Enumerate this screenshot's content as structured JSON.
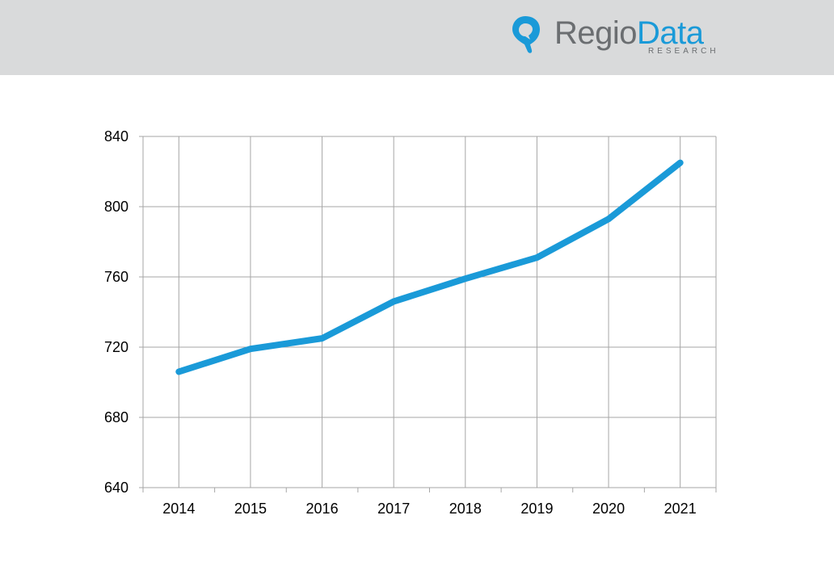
{
  "brand": {
    "name_part1": "Regio",
    "name_part2": "Data",
    "subtitle": "RESEARCH",
    "accent_color": "#1a9ad8",
    "text_color": "#6b6e71",
    "icon": "location-pin-icon"
  },
  "header": {
    "background": "#d9dadb"
  },
  "chart_data": {
    "type": "line",
    "title": "",
    "xlabel": "",
    "ylabel": "",
    "categories": [
      "2014",
      "2015",
      "2016",
      "2017",
      "2018",
      "2019",
      "2020",
      "2021"
    ],
    "series": [
      {
        "values": [
          706,
          719,
          725,
          746,
          759,
          771,
          793,
          825
        ],
        "color": "#1a9ad8"
      }
    ],
    "ylim": [
      640,
      840
    ],
    "yticks": [
      640,
      680,
      720,
      760,
      800,
      840
    ],
    "grid": true,
    "legend": "none"
  }
}
